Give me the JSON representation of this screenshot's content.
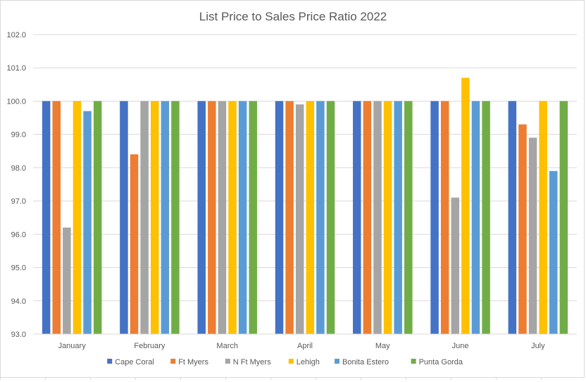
{
  "chart_data": {
    "type": "bar",
    "title": "List Price to Sales Price Ratio 2022",
    "xlabel": "",
    "ylabel": "",
    "ylim": [
      93.0,
      102.0
    ],
    "ytick_step": 1.0,
    "yticks": [
      "93.0",
      "94.0",
      "95.0",
      "96.0",
      "97.0",
      "98.0",
      "99.0",
      "100.0",
      "101.0",
      "102.0"
    ],
    "grid": true,
    "legend_position": "bottom",
    "categories": [
      "January",
      "February",
      "March",
      "April",
      "May",
      "June",
      "July"
    ],
    "series": [
      {
        "name": "Cape Coral",
        "color": "#4472c4",
        "values": [
          100.0,
          100.0,
          100.0,
          100.0,
          100.0,
          100.0,
          100.0
        ]
      },
      {
        "name": "Ft Myers",
        "color": "#ed7d31",
        "values": [
          100.0,
          98.4,
          100.0,
          100.0,
          100.0,
          100.0,
          99.3
        ]
      },
      {
        "name": "N Ft Myers",
        "color": "#a5a5a5",
        "values": [
          96.2,
          100.0,
          100.0,
          99.9,
          100.0,
          97.1,
          98.9
        ]
      },
      {
        "name": "Lehigh",
        "color": "#ffc000",
        "values": [
          100.0,
          100.0,
          100.0,
          100.0,
          100.0,
          100.7,
          100.0
        ]
      },
      {
        "name": "Bonita Estero",
        "color": "#5b9bd5",
        "values": [
          99.7,
          100.0,
          100.0,
          100.0,
          100.0,
          100.0,
          97.9
        ]
      },
      {
        "name": "Punta Gorda",
        "color": "#70ad47",
        "values": [
          100.0,
          100.0,
          100.0,
          100.0,
          100.0,
          100.0,
          100.0
        ]
      }
    ]
  }
}
